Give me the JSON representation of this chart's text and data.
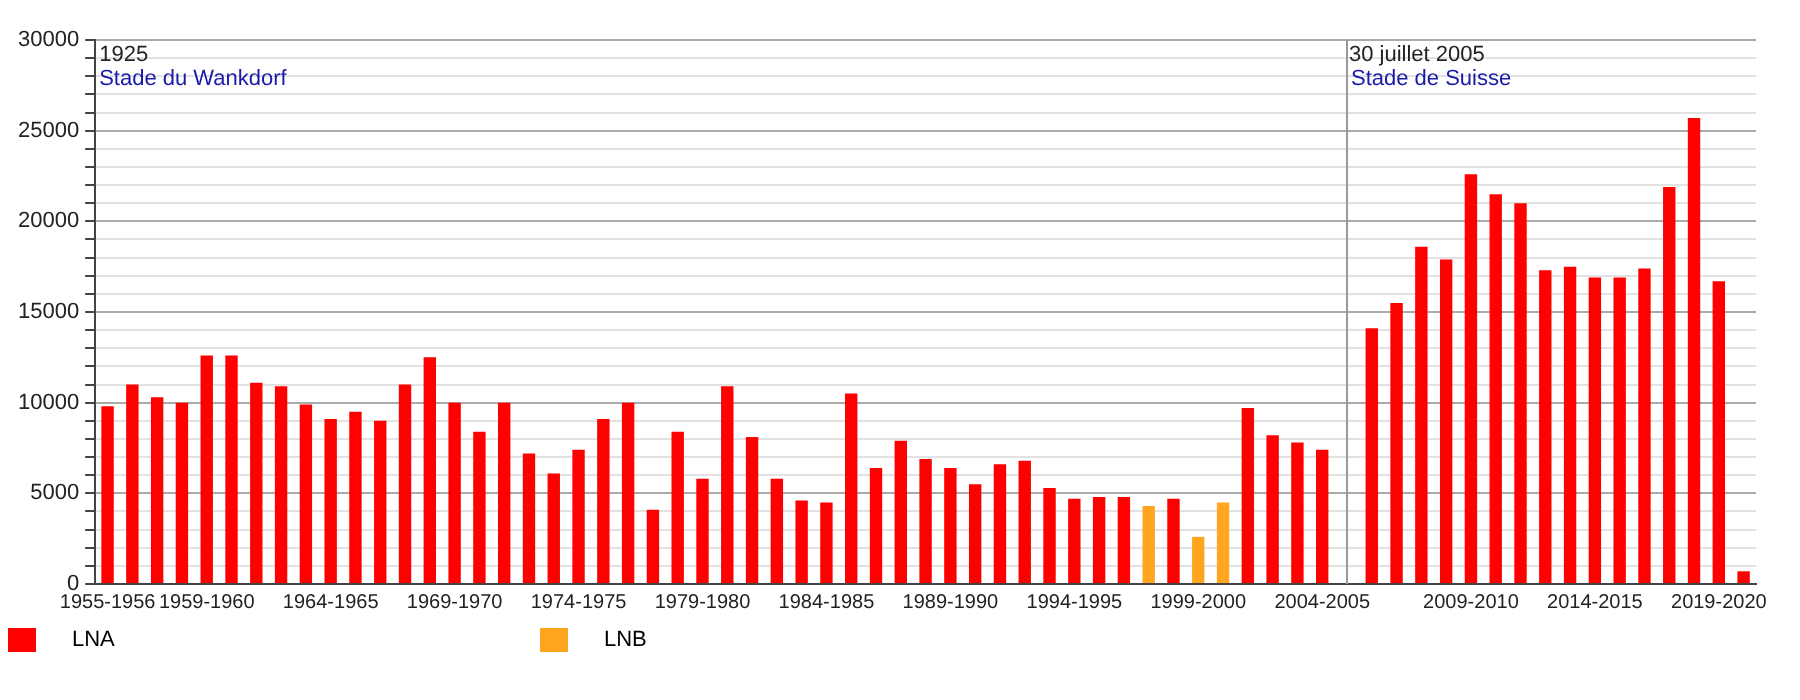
{
  "chart_data": {
    "type": "bar",
    "categories": [
      "1955-1956",
      null,
      null,
      null,
      "1959-1960",
      null,
      null,
      null,
      null,
      "1964-1965",
      null,
      null,
      null,
      null,
      "1969-1970",
      null,
      null,
      null,
      null,
      "1974-1975",
      null,
      null,
      null,
      null,
      "1979-1980",
      null,
      null,
      null,
      null,
      "1984-1985",
      null,
      null,
      null,
      null,
      "1989-1990",
      null,
      null,
      null,
      null,
      "1994-1995",
      null,
      null,
      null,
      null,
      "1999-2000",
      null,
      null,
      null,
      null,
      "2004-2005",
      null,
      null,
      null,
      null,
      null,
      "2009-2010",
      null,
      null,
      null,
      null,
      "2014-2015",
      null,
      null,
      null,
      null,
      "2019-2020",
      null
    ],
    "series": [
      {
        "name": "LNA",
        "color": "#ff0000",
        "values": [
          9800,
          11000,
          10300,
          10000,
          12600,
          12600,
          11100,
          10900,
          9900,
          9100,
          9500,
          9000,
          11000,
          12500,
          10000,
          8400,
          10000,
          7200,
          6100,
          7400,
          9100,
          10000,
          4100,
          8400,
          5800,
          10900,
          8100,
          5800,
          4600,
          4500,
          10500,
          6400,
          7900,
          6900,
          6400,
          5500,
          6600,
          6800,
          5300,
          4700,
          4800,
          4800,
          null,
          4700,
          null,
          null,
          9700,
          8200,
          7800,
          7400,
          null,
          14100,
          15500,
          18600,
          17900,
          22600,
          21500,
          21000,
          17300,
          17500,
          16900,
          16900,
          17400,
          21900,
          25700,
          16700,
          700
        ]
      },
      {
        "name": "LNB",
        "color": "#ffa520",
        "values": [
          null,
          null,
          null,
          null,
          null,
          null,
          null,
          null,
          null,
          null,
          null,
          null,
          null,
          null,
          null,
          null,
          null,
          null,
          null,
          null,
          null,
          null,
          null,
          null,
          null,
          null,
          null,
          null,
          null,
          null,
          null,
          null,
          null,
          null,
          null,
          null,
          null,
          null,
          null,
          null,
          null,
          null,
          4300,
          null,
          2600,
          4500,
          null,
          null,
          null,
          null,
          null,
          null,
          null,
          null,
          null,
          null,
          null,
          null,
          null,
          null,
          null,
          null,
          null,
          null,
          null,
          null,
          null
        ]
      }
    ],
    "ylim": [
      0,
      30000
    ],
    "yticks": [
      0,
      {
        "value": 1000,
        "label": null
      },
      {
        "value": 2000,
        "label": null
      },
      {
        "value": 3000,
        "label": null
      },
      {
        "value": 4000,
        "label": null
      },
      5000,
      {
        "value": 6000,
        "label": null
      },
      {
        "value": 7000,
        "label": null
      },
      {
        "value": 8000,
        "label": null
      },
      {
        "value": 9000,
        "label": null
      },
      10000,
      {
        "value": 11000,
        "label": null
      },
      {
        "value": 12000,
        "label": null
      },
      {
        "value": 13000,
        "label": null
      },
      {
        "value": 14000,
        "label": null
      },
      15000,
      {
        "value": 16000,
        "label": null
      },
      {
        "value": 17000,
        "label": null
      },
      {
        "value": 18000,
        "label": null
      },
      {
        "value": 19000,
        "label": null
      },
      20000,
      {
        "value": 21000,
        "label": null
      },
      {
        "value": 22000,
        "label": null
      },
      {
        "value": 23000,
        "label": null
      },
      {
        "value": 24000,
        "label": null
      },
      25000,
      {
        "value": 26000,
        "label": null
      },
      {
        "value": 27000,
        "label": null
      },
      {
        "value": 28000,
        "label": null
      },
      {
        "value": 29000,
        "label": null
      },
      30000
    ],
    "grid": "y",
    "legend": "bottom left",
    "annotations": [
      "1925",
      "Stade du Wankdorf",
      "30 juillet 2005",
      "Stade de Suisse"
    ]
  }
}
